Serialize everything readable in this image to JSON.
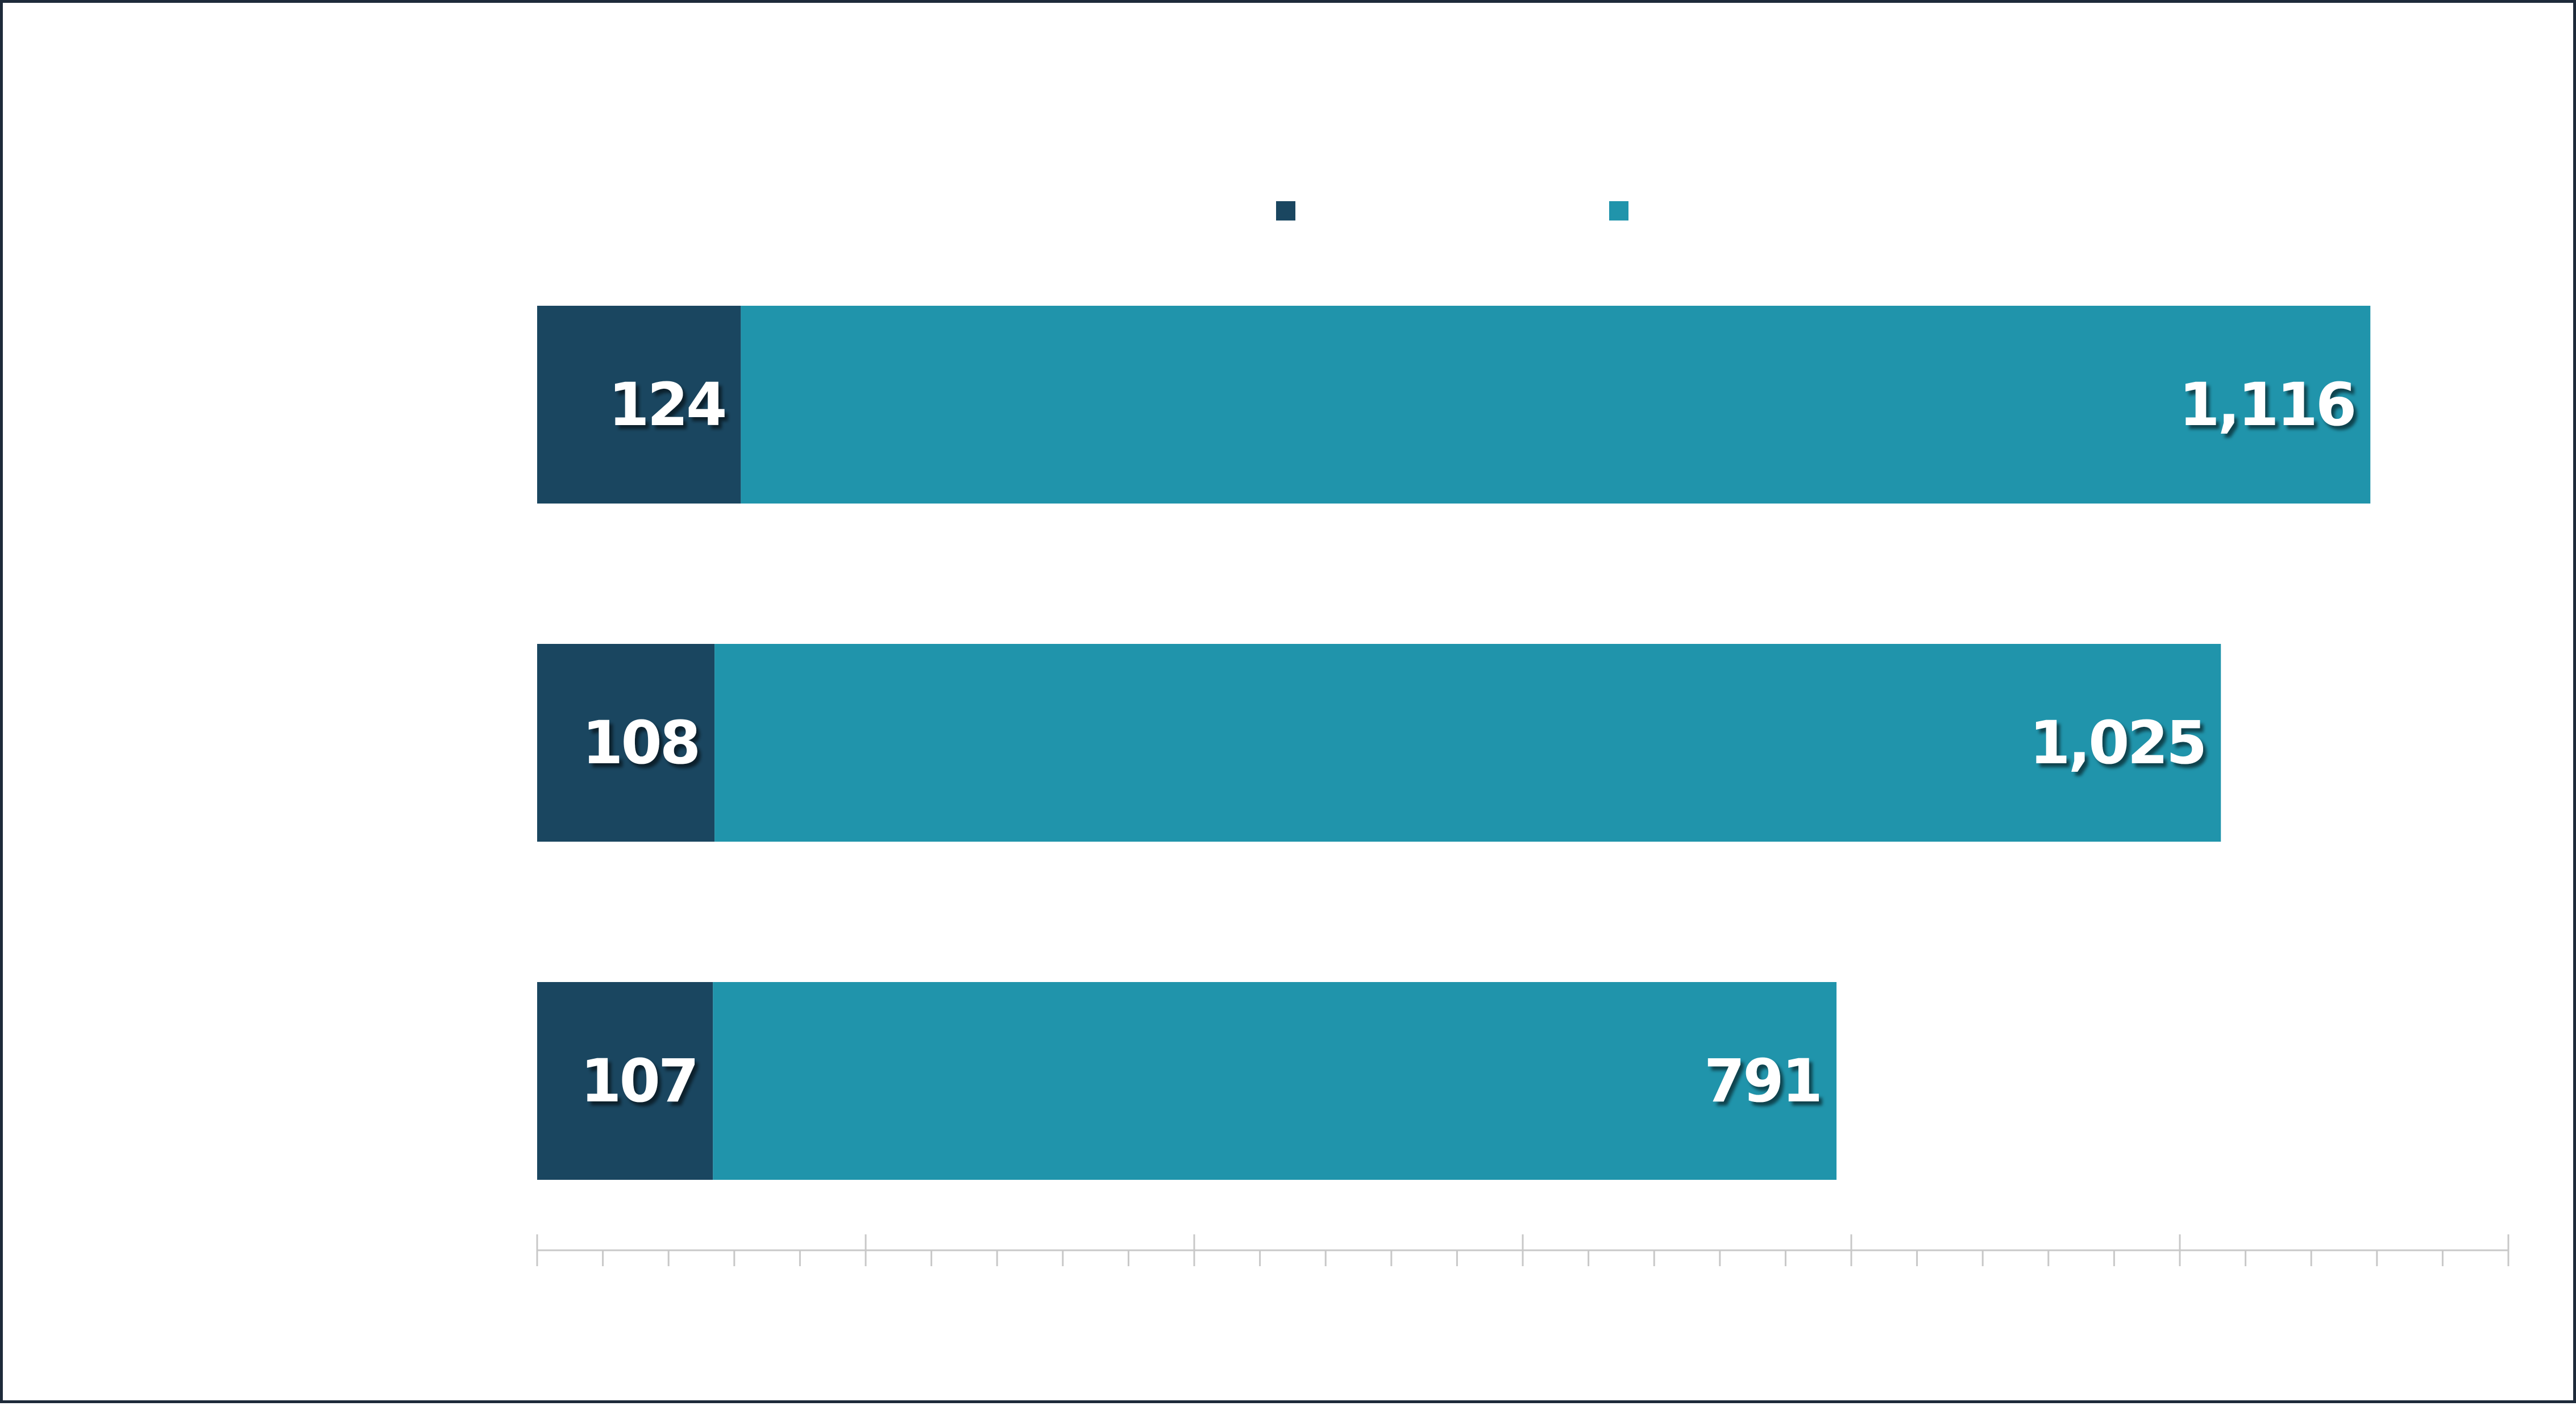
{
  "chart_data": {
    "type": "bar",
    "orientation": "horizontal",
    "stacked": true,
    "categories": [
      "",
      "",
      ""
    ],
    "series": [
      {
        "color": "#1a4660",
        "values": [
          124,
          108,
          107
        ],
        "labels": [
          "124",
          "108",
          "107"
        ]
      },
      {
        "color": "#2094ab",
        "values": [
          992,
          917,
          684
        ],
        "labels": [
          "1,116",
          "1,025",
          "791"
        ]
      }
    ],
    "xlim": [
      0,
      1200
    ],
    "major_tick_step": 200,
    "minor_tick_step": 40,
    "legend_position": "top",
    "grid": false,
    "colors": {
      "axis": "#c8c8c8",
      "frame": "#1e2a3a",
      "background": "#ffffff"
    }
  }
}
